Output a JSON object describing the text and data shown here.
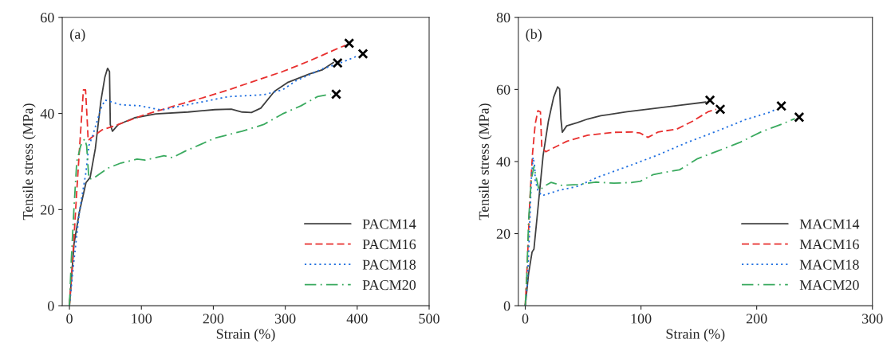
{
  "chart_data": [
    {
      "type": "line",
      "annotations": [
        "(a)"
      ],
      "xlabel": "Strain (%)",
      "ylabel": "Tensile stress (MPa)",
      "xlim": [
        -10,
        500
      ],
      "ylim": [
        0,
        60
      ],
      "xticks": [
        0,
        100,
        200,
        300,
        400,
        500
      ],
      "yticks": [
        0,
        20,
        40,
        60
      ],
      "legend": "bottom right",
      "series": [
        {
          "name": "PACM14",
          "line_style": "solid",
          "color": "#404040",
          "x": [
            0,
            6.4,
            13.8,
            23,
            28.8,
            36,
            43.7,
            49.3,
            53,
            55.7,
            56.8,
            59.8,
            68,
            90.5,
            120,
            165,
            202,
            225,
            240,
            253,
            266,
            285,
            304,
            333,
            352,
            367
          ],
          "values": [
            0,
            12.9,
            19.5,
            25.6,
            26.7,
            32.7,
            42.6,
            47.6,
            49.4,
            48.7,
            37.7,
            36.3,
            37.7,
            39.1,
            39.9,
            40.3,
            40.8,
            40.9,
            40.3,
            40.2,
            41.1,
            44.6,
            46.5,
            48.2,
            49.1,
            50.6
          ]
        },
        {
          "name": "PACM16",
          "line_style": "dashed",
          "color": "#e8302f",
          "x": [
            0,
            4.5,
            10,
            15.7,
            19.4,
            22.4,
            25,
            26,
            30.7,
            45.6,
            68,
            101.7,
            146.5,
            184,
            221,
            266,
            296,
            333,
            371,
            384
          ],
          "values": [
            0,
            9.6,
            23.4,
            36.6,
            44.9,
            44.9,
            37.7,
            34.4,
            35,
            36.6,
            37.7,
            39.6,
            41.6,
            43.2,
            44.9,
            47.2,
            48.7,
            50.9,
            53.4,
            54.2
          ]
        },
        {
          "name": "PACM18",
          "line_style": "dotted",
          "color": "#1f6fe0",
          "x": [
            0,
            6.4,
            13.8,
            23,
            27,
            32.5,
            38,
            43.7,
            49.3,
            71.8,
            98,
            128,
            150,
            184,
            221,
            270,
            296,
            315,
            352,
            374.6,
            401
          ],
          "values": [
            0,
            9.6,
            19.5,
            27.8,
            33.3,
            35.5,
            38.2,
            41,
            42.8,
            41.8,
            41.6,
            40.7,
            41.4,
            42.4,
            43.5,
            43.9,
            44.9,
            46.8,
            49.3,
            50.4,
            52
          ]
        },
        {
          "name": "PACM20",
          "line_style": "dashdot",
          "color": "#3aaa5f",
          "x": [
            0,
            2.6,
            6.4,
            10.2,
            15.7,
            21,
            23.9,
            27,
            32.5,
            53,
            71.8,
            94,
            105,
            131.6,
            142.8,
            161.5,
            180,
            202.6,
            240,
            270,
            296,
            322,
            344.7,
            363
          ],
          "values": [
            0,
            9.6,
            20.6,
            30,
            33.3,
            34.7,
            33.3,
            26.4,
            26.4,
            28.6,
            29.7,
            30.5,
            30.3,
            31.2,
            30.8,
            32.2,
            33.4,
            34.9,
            36.3,
            37.7,
            39.9,
            41.6,
            43.5,
            44
          ]
        },
        {
          "type": "scatter",
          "marker": "cross",
          "color": "#000000",
          "x": [
            372.7,
            388.8,
            408,
            370.8
          ],
          "values": [
            50.5,
            54.6,
            52.4,
            44
          ]
        }
      ]
    },
    {
      "type": "line",
      "annotations": [
        "(b)"
      ],
      "xlabel": "Strain (%)",
      "ylabel": "Tensile stress (MPa)",
      "xlim": [
        -6,
        300
      ],
      "ylim": [
        0,
        80
      ],
      "xticks": [
        0,
        100,
        200,
        300
      ],
      "yticks": [
        0,
        20,
        40,
        60,
        80
      ],
      "legend": "bottom right",
      "series": [
        {
          "name": "MACM14",
          "line_style": "solid",
          "color": "#404040",
          "x": [
            0,
            2.9,
            5.9,
            7.5,
            10.9,
            15.4,
            20,
            24.5,
            27.9,
            29.7,
            30.8,
            32,
            35.8,
            44.9,
            54,
            65.3,
            88,
            110.7,
            133,
            156
          ],
          "values": [
            0,
            9,
            14.9,
            15.7,
            26.8,
            41.6,
            51.2,
            57.8,
            60.7,
            60.1,
            51.9,
            48.1,
            49.9,
            50.8,
            51.8,
            52.7,
            53.8,
            54.7,
            55.6,
            56.5
          ]
        },
        {
          "name": "MACM16",
          "line_style": "dashed",
          "color": "#e8302f",
          "x": [
            0,
            1.8,
            4,
            6.3,
            8.6,
            10.9,
            13.1,
            14.3,
            17.7,
            24.5,
            35.8,
            54,
            76.6,
            92.5,
            99.3,
            106,
            115,
            131,
            144.7,
            158,
            165
          ],
          "values": [
            0,
            12,
            29.7,
            42.3,
            50.4,
            54.1,
            53.8,
            43.8,
            42.7,
            43.8,
            45.6,
            47.3,
            48.1,
            48.2,
            47.9,
            46.7,
            48.2,
            49,
            51.2,
            53.8,
            54.5
          ]
        },
        {
          "name": "MACM18",
          "line_style": "dotted",
          "color": "#1f6fe0",
          "x": [
            0,
            1.8,
            3.6,
            5.2,
            6.8,
            8.2,
            8.6,
            10.9,
            14.3,
            29,
            44.9,
            63,
            88,
            113,
            140,
            167,
            190,
            212.7,
            217.2
          ],
          "values": [
            0,
            6.1,
            20.1,
            34.9,
            41.2,
            38.6,
            34.9,
            32,
            30.5,
            32,
            33.1,
            35.7,
            38.6,
            41.6,
            45.3,
            48.6,
            51.6,
            53.8,
            54.7
          ]
        },
        {
          "name": "MACM20",
          "line_style": "dashdot",
          "color": "#3aaa5f",
          "x": [
            0,
            1.4,
            2.9,
            5.2,
            7.5,
            9.3,
            12,
            17.7,
            22.2,
            31.3,
            44.9,
            60.8,
            76.6,
            92.5,
            99.3,
            110.7,
            122,
            133.3,
            149,
            167,
            185.5,
            203.6,
            221.8,
            233
          ],
          "values": [
            0,
            9,
            23.8,
            34.9,
            38.6,
            35.7,
            32,
            33.4,
            34.2,
            33.4,
            33.6,
            34.3,
            34,
            34.2,
            34.5,
            36.4,
            37.1,
            37.7,
            40.8,
            43,
            45.3,
            48.2,
            50.4,
            51.9
          ]
        },
        {
          "type": "scatter",
          "marker": "cross",
          "color": "#000000",
          "x": [
            159.6,
            168.5,
            221.3,
            236.7
          ],
          "values": [
            57,
            54.5,
            55.4,
            52.3
          ]
        }
      ]
    }
  ]
}
